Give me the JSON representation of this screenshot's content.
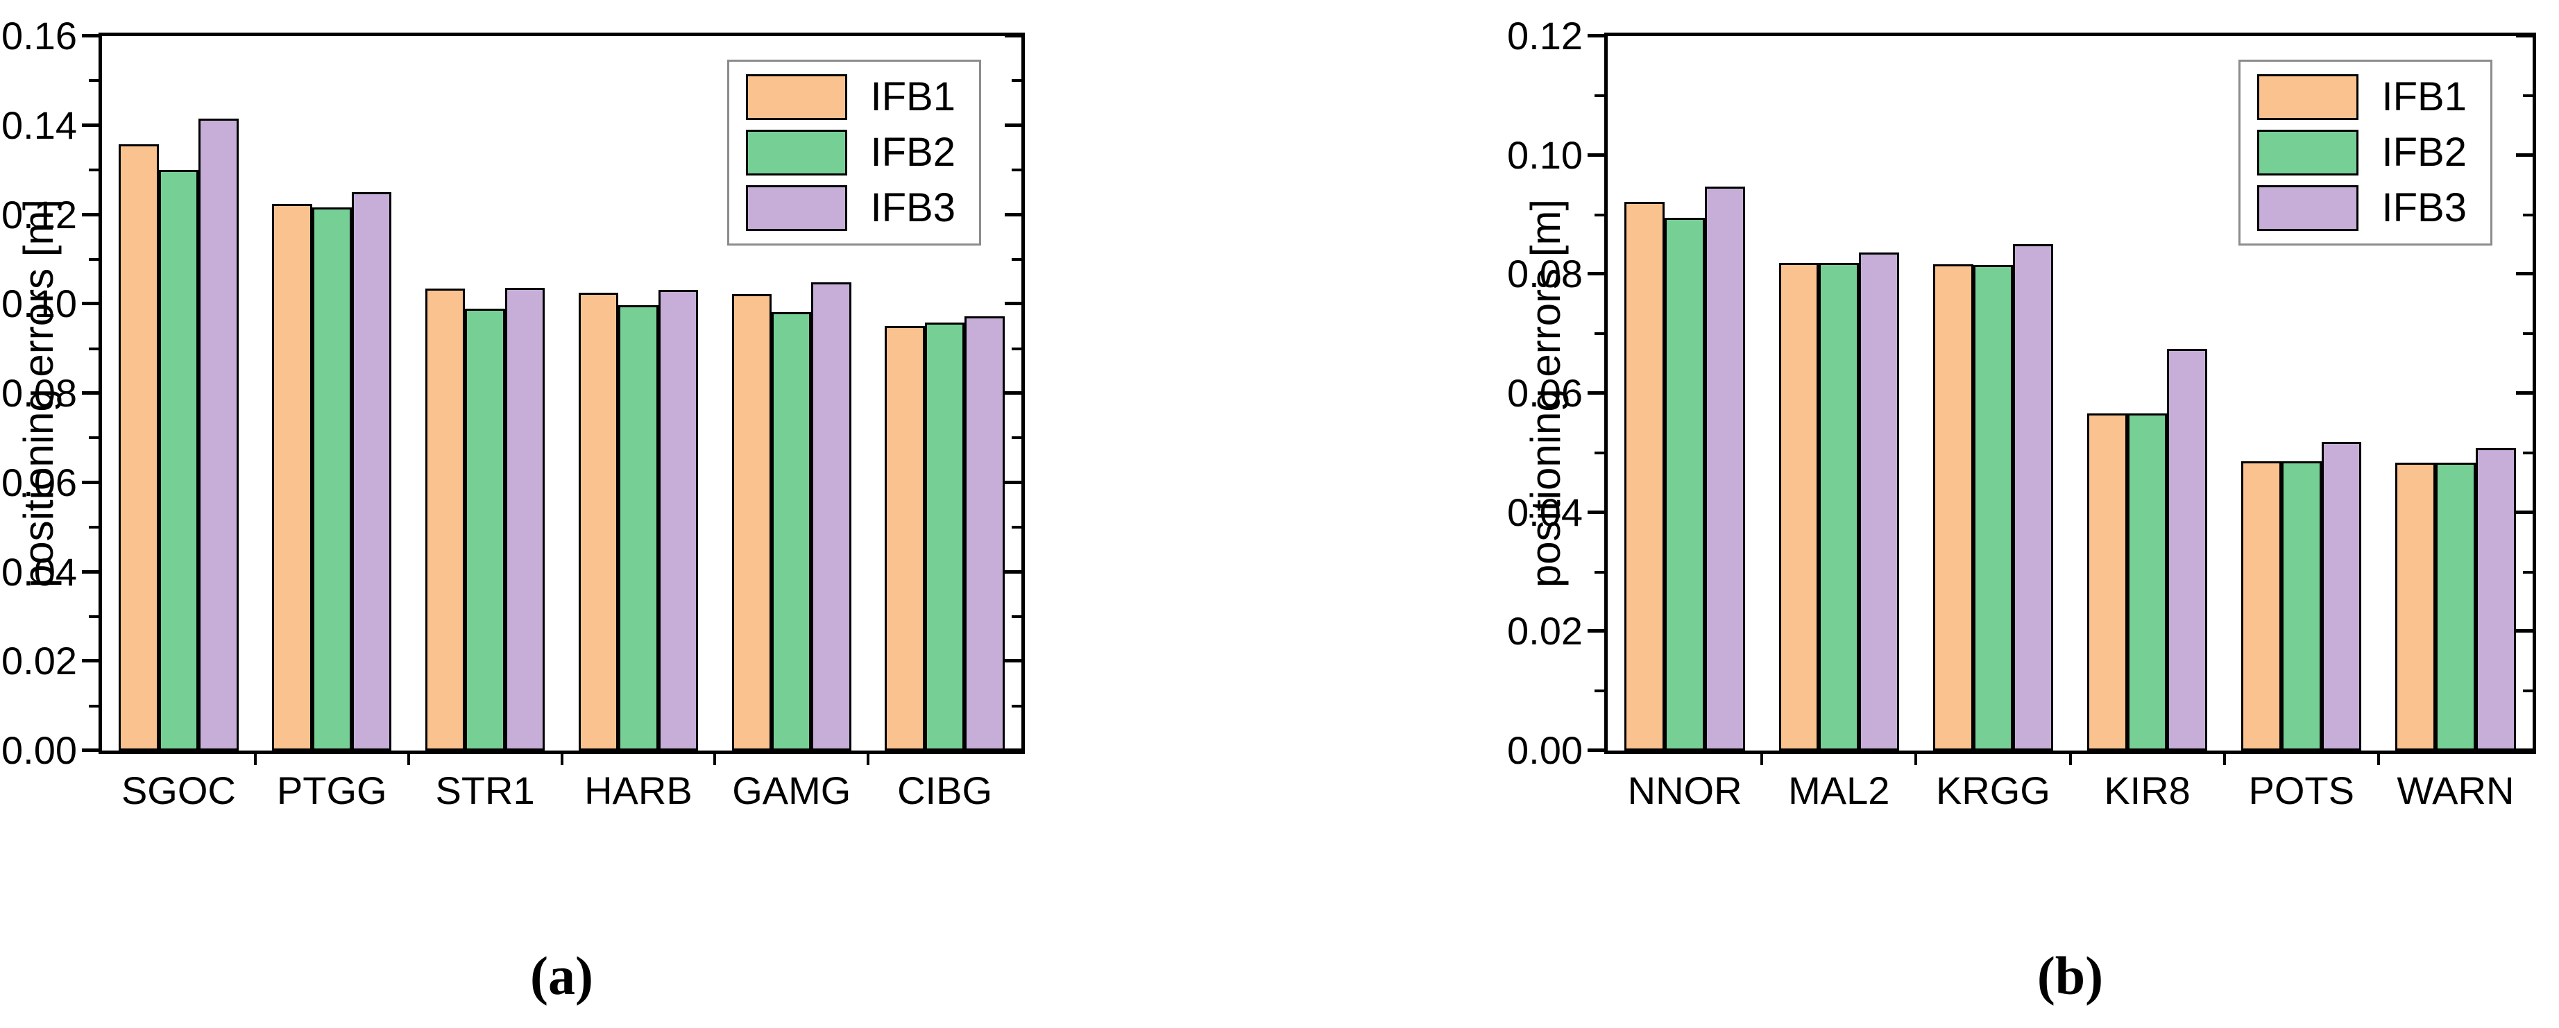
{
  "figure": {
    "background": "#ffffff",
    "axis_color": "#000000",
    "legend_border_color": "#8c8c8c",
    "caption_a": "(a)",
    "caption_b": "(b)"
  },
  "chart_data": [
    {
      "type": "bar",
      "panel": "a",
      "caption": "(a)",
      "title": "",
      "xlabel": "",
      "ylabel": "positioning errors [m]",
      "ylim": [
        0.0,
        0.16
      ],
      "ytick_step": 0.02,
      "ytick_minor_step": 0.01,
      "ytick_decimals": 2,
      "grid": false,
      "legend_position": "top-right-inside",
      "categories": [
        "SGOC",
        "PTGG",
        "STR1",
        "HARB",
        "GAMG",
        "CIBG"
      ],
      "series": [
        {
          "name": "IFB1",
          "color": "#FAC28E",
          "values": [
            0.1358,
            0.1224,
            0.1035,
            0.1025,
            0.1022,
            0.0951
          ]
        },
        {
          "name": "IFB2",
          "color": "#76D096",
          "values": [
            0.13,
            0.1216,
            0.099,
            0.0997,
            0.0982,
            0.0958
          ]
        },
        {
          "name": "IFB3",
          "color": "#C6AED8",
          "values": [
            0.1415,
            0.125,
            0.1036,
            0.1032,
            0.1048,
            0.0972
          ]
        }
      ]
    },
    {
      "type": "bar",
      "panel": "b",
      "caption": "(b)",
      "title": "",
      "xlabel": "",
      "ylabel": "positioning errors [m]",
      "ylim": [
        0.0,
        0.12
      ],
      "ytick_step": 0.02,
      "ytick_minor_step": 0.01,
      "ytick_decimals": 2,
      "grid": false,
      "legend_position": "top-right-inside",
      "categories": [
        "NNOR",
        "MAL2",
        "KRGG",
        "KIR8",
        "POTS",
        "WARN"
      ],
      "series": [
        {
          "name": "IFB1",
          "color": "#FAC28E",
          "values": [
            0.0922,
            0.0819,
            0.0817,
            0.0566,
            0.0486,
            0.0483
          ]
        },
        {
          "name": "IFB2",
          "color": "#76D096",
          "values": [
            0.0895,
            0.0819,
            0.0815,
            0.0566,
            0.0486,
            0.0484
          ]
        },
        {
          "name": "IFB3",
          "color": "#C6AED8",
          "values": [
            0.0947,
            0.0837,
            0.085,
            0.0674,
            0.0519,
            0.0508
          ]
        }
      ]
    }
  ]
}
